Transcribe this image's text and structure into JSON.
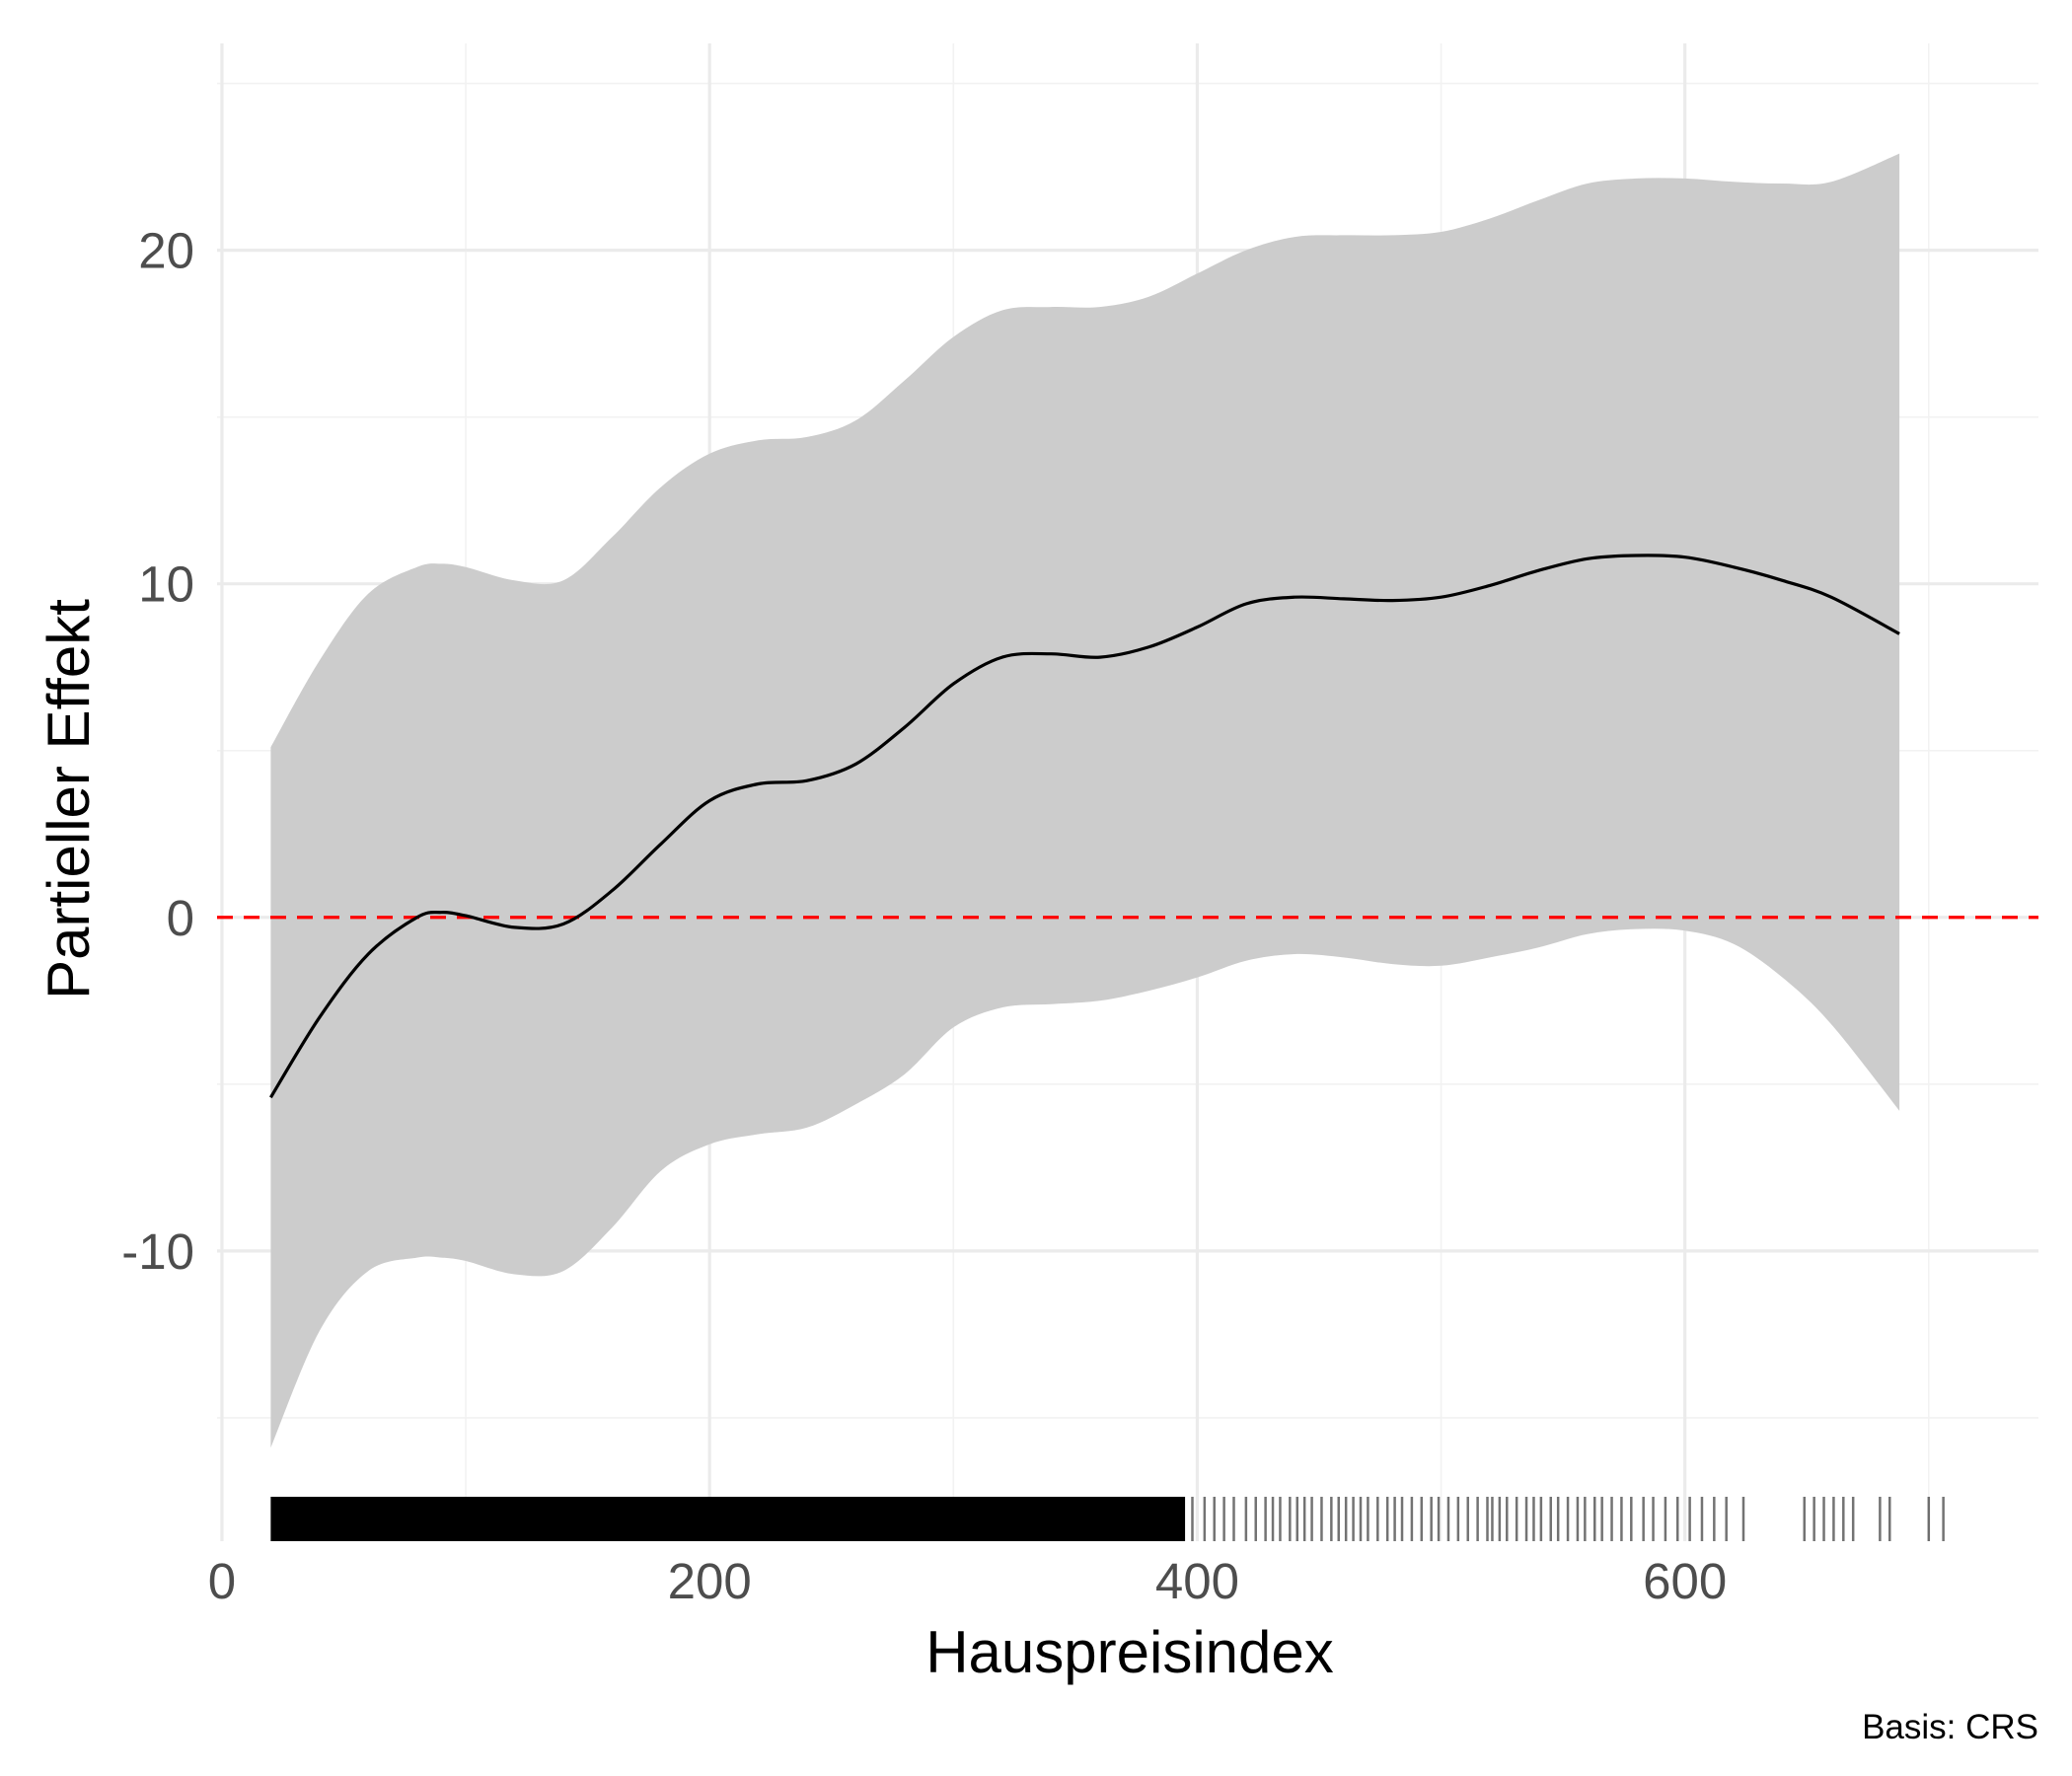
{
  "chart_data": {
    "type": "line",
    "title": "",
    "xlabel": "Hauspreisindex",
    "ylabel": "Partieller Effekt",
    "caption": "Basis: CRS",
    "xlim": [
      -2,
      745
    ],
    "ylim": [
      -18.7,
      26.2
    ],
    "x_ticks": [
      0,
      200,
      400,
      600
    ],
    "x_tick_labels": [
      "0",
      "200",
      "400",
      "600"
    ],
    "y_ticks": [
      -10,
      0,
      10,
      20
    ],
    "y_tick_labels": [
      "-10",
      "0",
      "10",
      "20"
    ],
    "grid": true,
    "legend": "none",
    "reference_line": {
      "y": 0,
      "style": "dashed",
      "color": "#ff0000"
    },
    "colors": {
      "ribbon": "#cccccc",
      "line": "#000000",
      "rug": "#000000"
    },
    "series": [
      {
        "x": [
          20,
          40,
          60,
          80,
          90,
          100,
          120,
          140,
          160,
          180,
          200,
          220,
          240,
          260,
          280,
          300,
          320,
          340,
          360,
          380,
          400,
          420,
          440,
          460,
          480,
          500,
          520,
          540,
          560,
          580,
          600,
          620,
          640,
          660,
          688
        ],
        "y": [
          -5.4,
          -3.0,
          -1.1,
          0.0,
          0.15,
          0.05,
          -0.3,
          -0.2,
          0.8,
          2.2,
          3.5,
          4.0,
          4.1,
          4.6,
          5.7,
          7.0,
          7.8,
          7.9,
          7.8,
          8.1,
          8.7,
          9.4,
          9.6,
          9.55,
          9.5,
          9.6,
          9.95,
          10.4,
          10.75,
          10.85,
          10.8,
          10.5,
          10.1,
          9.6,
          8.5
        ],
        "lower": [
          -15.9,
          -12.4,
          -10.6,
          -10.2,
          -10.2,
          -10.3,
          -10.7,
          -10.6,
          -9.3,
          -7.6,
          -6.8,
          -6.5,
          -6.3,
          -5.6,
          -4.7,
          -3.3,
          -2.7,
          -2.6,
          -2.5,
          -2.2,
          -1.8,
          -1.3,
          -1.1,
          -1.2,
          -1.4,
          -1.45,
          -1.2,
          -0.9,
          -0.5,
          -0.35,
          -0.4,
          -0.8,
          -1.8,
          -3.2,
          -5.8
        ],
        "upper": [
          5.1,
          7.7,
          9.7,
          10.5,
          10.6,
          10.5,
          10.1,
          10.1,
          11.4,
          12.9,
          13.9,
          14.3,
          14.4,
          14.9,
          16.1,
          17.4,
          18.2,
          18.3,
          18.3,
          18.6,
          19.3,
          20.0,
          20.4,
          20.45,
          20.45,
          20.55,
          20.95,
          21.5,
          22.0,
          22.15,
          22.15,
          22.05,
          22.0,
          22.05,
          22.9
        ]
      }
    ],
    "rug": {
      "dense_ranges": [
        [
          20,
          395
        ]
      ],
      "sparse_x": [
        398,
        403,
        407,
        411,
        415,
        420,
        424,
        428,
        431,
        434,
        438,
        441,
        444,
        447,
        451,
        455,
        458,
        461,
        464,
        467,
        470,
        474,
        478,
        481,
        484,
        488,
        492,
        496,
        499,
        503,
        507,
        511,
        515,
        519,
        521,
        524,
        527,
        531,
        535,
        538,
        541,
        545,
        548,
        552,
        556,
        559,
        563,
        566,
        570,
        574,
        578,
        583,
        587,
        592,
        597,
        602,
        607,
        612,
        617,
        624,
        649,
        653,
        657,
        661,
        665,
        669,
        680,
        684,
        700,
        706
      ]
    }
  }
}
